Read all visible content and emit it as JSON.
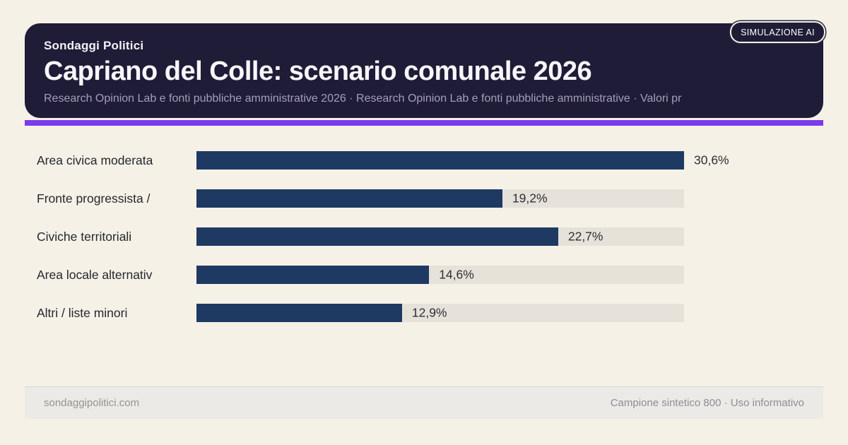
{
  "badge": {
    "label": "SIMULAZIONE AI"
  },
  "header": {
    "kicker": "Sondaggi Politici",
    "title": "Capriano del Colle: scenario comunale 2026",
    "subtitle": "Research Opinion Lab e fonti pubbliche amministrative 2026 · Research Opinion Lab e fonti pubbliche amministrative · Valori pr"
  },
  "chart_data": {
    "type": "bar",
    "orientation": "horizontal",
    "title": "Capriano del Colle: scenario comunale 2026",
    "categories": [
      "Area civica moderata",
      "Fronte progressista /",
      "Civiche territoriali",
      "Area locale alternativ",
      "Altri / liste minori"
    ],
    "values": [
      30.6,
      19.2,
      22.7,
      14.6,
      12.9
    ],
    "value_labels": [
      "30,6%",
      "19,2%",
      "22,7%",
      "14,6%",
      "12,9%"
    ],
    "xlim": [
      0,
      30.6
    ],
    "grid": false,
    "legend": false,
    "bar_color": "#1e3a63",
    "track_color": "#e6e2d9"
  },
  "footer": {
    "left": "sondaggipolitici.com",
    "right": "Campione sintetico 800 · Uso informativo"
  },
  "colors": {
    "background": "#f5f1e7",
    "header_bg": "#1f1c37",
    "accent": "#7c3aed",
    "bar": "#1e3a63",
    "track": "#e6e2d9",
    "label_text": "#26262e",
    "subtitle_text": "#a39fb8"
  }
}
